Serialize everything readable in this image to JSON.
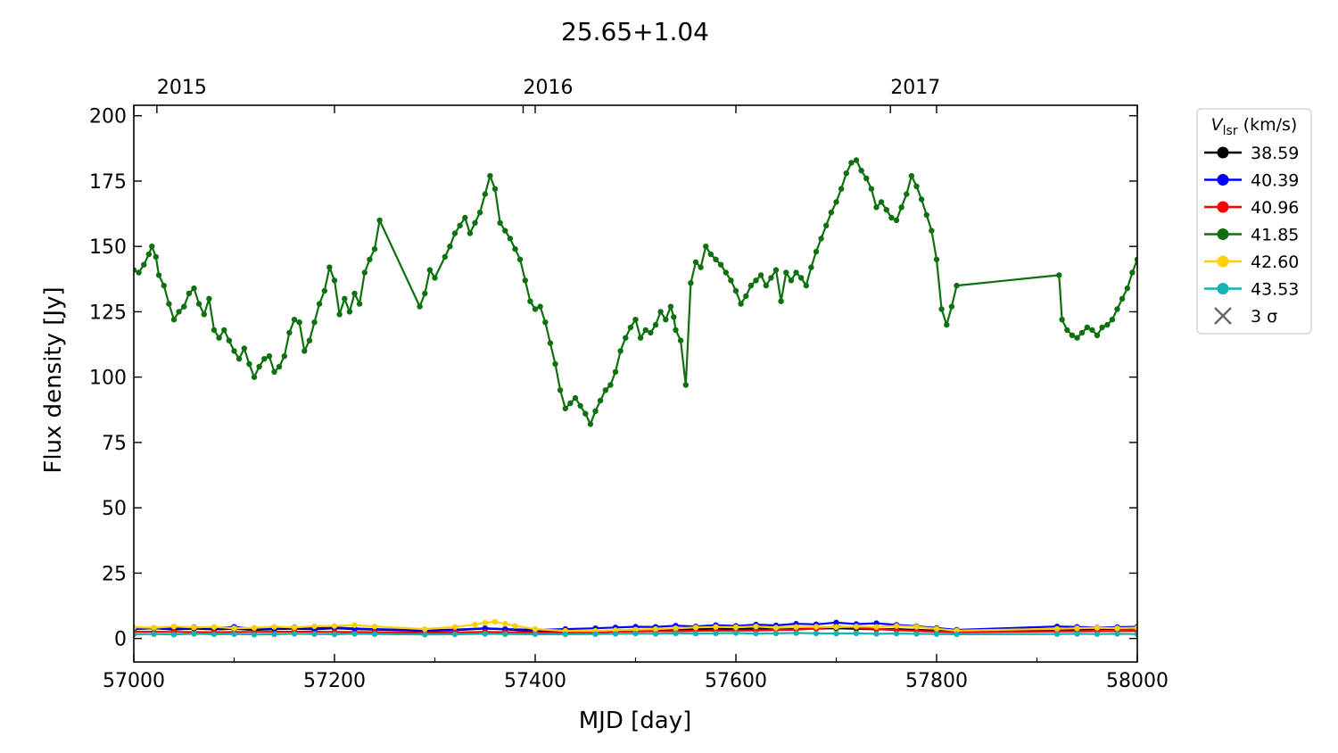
{
  "chart_data": {
    "type": "line",
    "title": "25.65+1.04",
    "xlabel": "MJD [day]",
    "ylabel": "Flux density [Jy]",
    "xlim": [
      57000,
      58000
    ],
    "ylim": [
      -9,
      204
    ],
    "x_ticks": [
      57000,
      57200,
      57400,
      57600,
      57800,
      58000
    ],
    "y_ticks": [
      0,
      25,
      50,
      75,
      100,
      125,
      150,
      175,
      200
    ],
    "top_axis_labels": [
      {
        "label": "2015",
        "mjd": 57023
      },
      {
        "label": "2016",
        "mjd": 57388
      },
      {
        "label": "2017",
        "mjd": 57754
      }
    ],
    "legend": {
      "title_main": "V",
      "title_sub": "lsr",
      "title_unit": " (km/s)",
      "placement": "upper-right-outside",
      "sigma_label": "3 σ"
    },
    "grid": false,
    "series": [
      {
        "name": "38.59",
        "color": "#000000",
        "x": [
          57000,
          57020,
          57040,
          57060,
          57080,
          57100,
          57120,
          57140,
          57160,
          57180,
          57200,
          57220,
          57240,
          57290,
          57320,
          57350,
          57370,
          57400,
          57430,
          57460,
          57480,
          57500,
          57520,
          57540,
          57560,
          57580,
          57600,
          57620,
          57640,
          57660,
          57680,
          57700,
          57720,
          57740,
          57760,
          57780,
          57800,
          57820,
          57920,
          57940,
          57960,
          57980,
          58000
        ],
        "y": [
          3.6,
          3.9,
          3.4,
          3.8,
          3.5,
          3.7,
          3.3,
          3.6,
          3.8,
          3.5,
          3.9,
          3.6,
          3.4,
          2.9,
          3.2,
          3.8,
          3.5,
          2.8,
          2.5,
          2.7,
          3.1,
          3.3,
          3.2,
          3.5,
          3.6,
          3.8,
          3.5,
          3.9,
          3.7,
          3.6,
          3.8,
          3.9,
          3.7,
          3.5,
          3.6,
          3.3,
          3.0,
          2.8,
          3.4,
          3.5,
          3.6,
          3.7,
          3.8
        ]
      },
      {
        "name": "40.39",
        "color": "#0000ff",
        "x": [
          57000,
          57020,
          57040,
          57060,
          57080,
          57100,
          57120,
          57140,
          57160,
          57180,
          57200,
          57220,
          57240,
          57290,
          57320,
          57350,
          57370,
          57400,
          57430,
          57460,
          57480,
          57500,
          57520,
          57540,
          57560,
          57580,
          57600,
          57620,
          57640,
          57660,
          57680,
          57700,
          57720,
          57740,
          57760,
          57780,
          57800,
          57820,
          57920,
          57940,
          57960,
          57980,
          58000
        ],
        "y": [
          3.8,
          4.1,
          3.9,
          4.3,
          4.0,
          4.4,
          3.7,
          4.1,
          4.3,
          3.9,
          4.2,
          3.8,
          3.6,
          3.1,
          3.4,
          3.9,
          3.6,
          3.3,
          3.6,
          3.9,
          4.2,
          4.5,
          4.4,
          4.9,
          4.6,
          5.1,
          4.8,
          5.3,
          5.0,
          5.6,
          5.4,
          6.1,
          5.5,
          5.8,
          5.2,
          4.7,
          4.0,
          3.3,
          4.6,
          4.4,
          4.2,
          4.3,
          4.5
        ]
      },
      {
        "name": "40.96",
        "color": "#ff0000",
        "x": [
          57000,
          57040,
          57080,
          57120,
          57160,
          57200,
          57240,
          57290,
          57320,
          57350,
          57370,
          57400,
          57430,
          57460,
          57480,
          57500,
          57540,
          57580,
          57620,
          57660,
          57680,
          57700,
          57720,
          57740,
          57760,
          57780,
          57800,
          57820,
          57920,
          57960,
          58000
        ],
        "y": [
          2.6,
          2.5,
          2.4,
          2.5,
          2.6,
          2.5,
          2.4,
          2.2,
          2.3,
          2.5,
          2.4,
          2.3,
          2.2,
          2.3,
          2.6,
          2.7,
          2.8,
          3.0,
          3.1,
          3.4,
          3.8,
          4.6,
          4.2,
          3.6,
          3.2,
          2.9,
          2.6,
          2.4,
          2.7,
          2.8,
          2.9
        ]
      },
      {
        "name": "41.85",
        "color": "#0e700e",
        "x": [
          57000,
          57005,
          57010,
          57015,
          57018,
          57022,
          57025,
          57030,
          57035,
          57040,
          57045,
          57050,
          57055,
          57060,
          57065,
          57070,
          57075,
          57080,
          57085,
          57090,
          57095,
          57100,
          57105,
          57110,
          57115,
          57120,
          57125,
          57130,
          57135,
          57140,
          57145,
          57150,
          57155,
          57160,
          57165,
          57170,
          57175,
          57180,
          57185,
          57190,
          57195,
          57200,
          57205,
          57210,
          57215,
          57220,
          57225,
          57230,
          57235,
          57240,
          57245,
          57285,
          57290,
          57295,
          57300,
          57310,
          57315,
          57320,
          57325,
          57330,
          57335,
          57340,
          57345,
          57350,
          57355,
          57360,
          57365,
          57370,
          57375,
          57380,
          57385,
          57390,
          57395,
          57400,
          57405,
          57410,
          57415,
          57420,
          57425,
          57430,
          57435,
          57440,
          57445,
          57450,
          57455,
          57460,
          57465,
          57470,
          57475,
          57480,
          57485,
          57490,
          57495,
          57500,
          57505,
          57510,
          57515,
          57520,
          57525,
          57530,
          57535,
          57538,
          57540,
          57545,
          57550,
          57555,
          57560,
          57565,
          57570,
          57575,
          57580,
          57585,
          57590,
          57595,
          57600,
          57605,
          57610,
          57615,
          57620,
          57625,
          57630,
          57635,
          57640,
          57645,
          57650,
          57655,
          57660,
          57665,
          57670,
          57675,
          57680,
          57685,
          57690,
          57695,
          57700,
          57705,
          57710,
          57715,
          57720,
          57725,
          57730,
          57735,
          57740,
          57745,
          57750,
          57755,
          57760,
          57765,
          57770,
          57775,
          57780,
          57785,
          57790,
          57795,
          57800,
          57805,
          57810,
          57815,
          57820,
          57922,
          57925,
          57930,
          57935,
          57940,
          57945,
          57950,
          57955,
          57960,
          57965,
          57970,
          57975,
          57980,
          57985,
          57990,
          57995,
          58000
        ],
        "y": [
          141,
          140,
          143,
          147,
          150,
          146,
          139,
          135,
          128,
          122,
          125,
          127,
          132,
          134,
          128,
          124,
          130,
          118,
          115,
          118,
          114,
          110,
          107,
          111,
          105,
          100,
          104,
          107,
          108,
          102,
          104,
          108,
          117,
          122,
          121,
          110,
          114,
          121,
          128,
          133,
          142,
          137,
          124,
          130,
          125,
          132,
          128,
          140,
          145,
          149,
          160,
          127,
          132,
          141,
          138,
          146,
          150,
          155,
          158,
          161,
          155,
          159,
          163,
          170,
          177,
          172,
          159,
          156,
          153,
          149,
          145,
          137,
          129,
          126,
          127,
          121,
          113,
          105,
          95,
          88,
          90,
          92,
          89,
          86,
          82,
          87,
          91,
          95,
          97,
          102,
          110,
          115,
          119,
          122,
          115,
          118,
          117,
          120,
          125,
          122,
          127,
          123,
          118,
          114,
          97,
          136,
          144,
          142,
          150,
          147,
          145,
          143,
          140,
          137,
          133,
          128,
          131,
          135,
          137,
          139,
          135,
          138,
          141,
          129,
          140,
          137,
          140,
          138,
          135,
          142,
          148,
          153,
          158,
          163,
          167,
          172,
          178,
          182,
          183,
          179,
          176,
          172,
          165,
          167,
          164,
          161,
          160,
          165,
          170,
          177,
          173,
          168,
          162,
          156,
          145,
          126,
          120,
          127,
          135,
          139,
          122,
          118,
          116,
          115,
          117,
          119,
          118,
          116,
          119,
          120,
          122,
          126,
          130,
          134,
          140,
          145
        ]
      },
      {
        "name": "42.60",
        "color": "#ffd000",
        "x": [
          57000,
          57020,
          57040,
          57060,
          57080,
          57100,
          57120,
          57140,
          57160,
          57180,
          57200,
          57220,
          57240,
          57290,
          57320,
          57340,
          57350,
          57360,
          57370,
          57380,
          57400,
          57430,
          57460,
          57480,
          57500,
          57520,
          57540,
          57560,
          57580,
          57600,
          57620,
          57640,
          57660,
          57680,
          57700,
          57720,
          57740,
          57760,
          57780,
          57800,
          57820,
          57920,
          57940,
          57960,
          57980,
          58000
        ],
        "y": [
          4.3,
          4.1,
          4.6,
          4.2,
          4.4,
          3.9,
          4.1,
          4.5,
          4.2,
          4.7,
          4.8,
          5.1,
          4.6,
          3.6,
          4.4,
          5.3,
          6.0,
          6.4,
          5.6,
          4.8,
          3.6,
          2.9,
          2.9,
          3.2,
          3.4,
          3.6,
          3.9,
          4.2,
          4.4,
          4.3,
          4.6,
          4.1,
          4.4,
          4.5,
          4.3,
          4.6,
          4.4,
          4.8,
          4.5,
          3.7,
          3.0,
          3.7,
          3.9,
          4.1,
          3.9,
          4.1
        ]
      },
      {
        "name": "43.53",
        "color": "#17b1b1",
        "x": [
          57000,
          57020,
          57040,
          57060,
          57080,
          57100,
          57120,
          57140,
          57160,
          57180,
          57200,
          57220,
          57240,
          57290,
          57320,
          57350,
          57370,
          57400,
          57430,
          57460,
          57480,
          57500,
          57520,
          57540,
          57560,
          57580,
          57600,
          57620,
          57640,
          57660,
          57680,
          57700,
          57720,
          57740,
          57760,
          57780,
          57800,
          57820,
          57920,
          57940,
          57960,
          57980,
          58000
        ],
        "y": [
          1.6,
          1.7,
          1.5,
          1.8,
          1.6,
          1.7,
          1.5,
          1.6,
          1.8,
          1.7,
          1.6,
          1.8,
          1.7,
          1.5,
          1.6,
          1.8,
          1.7,
          1.6,
          1.6,
          1.7,
          1.8,
          1.9,
          1.8,
          2.0,
          1.9,
          2.0,
          2.1,
          1.9,
          2.0,
          2.1,
          2.0,
          1.9,
          2.0,
          1.8,
          1.9,
          1.8,
          1.7,
          1.6,
          1.7,
          1.8,
          1.7,
          1.8,
          1.7
        ]
      }
    ]
  }
}
